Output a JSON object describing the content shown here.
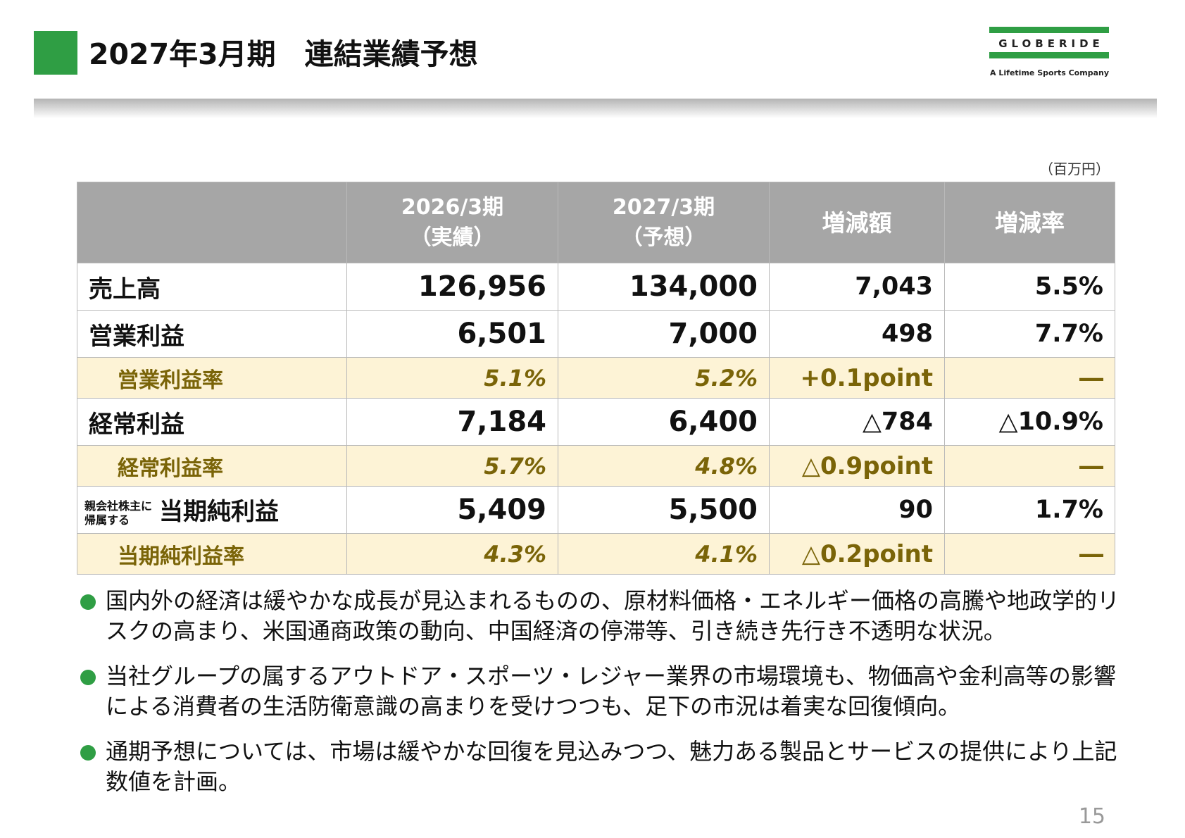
{
  "header": {
    "title": "2027年3月期　連結業績予想",
    "logo": {
      "wordmark": "GLOBERIDE",
      "tagline": "A Lifetime Sports Company",
      "brand_color": "#2f9e44"
    }
  },
  "unit_note": "（百万円）",
  "table": {
    "columns": [
      "",
      "2026/3期\n（実績）",
      "2027/3期\n（予想）",
      "増減額",
      "増減率"
    ],
    "rows": [
      {
        "label": "売上高",
        "fy2026": "126,956",
        "fy2027": "134,000",
        "diff": "7,043",
        "rate": "5.5%"
      },
      {
        "label": "営業利益",
        "fy2026": "6,501",
        "fy2027": "7,000",
        "diff": "498",
        "rate": "7.7%"
      },
      {
        "label": "営業利益率",
        "fy2026": "5.1%",
        "fy2027": "5.2%",
        "diff": "+0.1point",
        "rate": "―"
      },
      {
        "label": "経常利益",
        "fy2026": "7,184",
        "fy2027": "6,400",
        "diff": "△784",
        "rate": "△10.9%"
      },
      {
        "label": "経常利益率",
        "fy2026": "5.7%",
        "fy2027": "4.8%",
        "diff": "△0.9point",
        "rate": "―"
      },
      {
        "prefix": "親会社株主に\n帰属する",
        "label": "当期純利益",
        "fy2026": "5,409",
        "fy2027": "5,500",
        "diff": "90",
        "rate": "1.7%"
      },
      {
        "label": "当期純利益率",
        "fy2026": "4.3%",
        "fy2027": "4.1%",
        "diff": "△0.2point",
        "rate": "―"
      }
    ]
  },
  "bullets": [
    "国内外の経済は緩やかな成長が見込まれるものの、原材料価格・エネルギー価格の高騰や地政学的リスクの高まり、米国通商政策の動向、中国経済の停滞等、引き続き先行き不透明な状況。",
    "当社グループの属するアウトドア・スポーツ・レジャー業界の市場環境も、物価高や金利高等の影響による消費者の生活防衛意識の高まりを受けつつも、足下の市況は着実な回復傾向。",
    "通期予想については、市場は緩やかな回復を見込みつつ、魅力ある製品とサービスの提供により上記数値を計画。"
  ],
  "page_number": "15"
}
